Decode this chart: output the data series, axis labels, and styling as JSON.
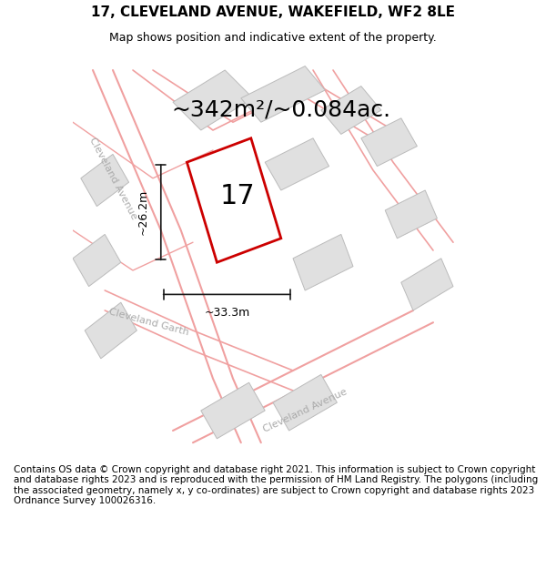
{
  "title_line1": "17, CLEVELAND AVENUE, WAKEFIELD, WF2 8LE",
  "title_line2": "Map shows position and indicative extent of the property.",
  "area_text": "~342m²/~0.084ac.",
  "number_label": "17",
  "dim_width": "~33.3m",
  "dim_height": "~26.2m",
  "footer_text": "Contains OS data © Crown copyright and database right 2021. This information is subject to Crown copyright and database rights 2023 and is reproduced with the permission of HM Land Registry. The polygons (including the associated geometry, namely x, y co-ordinates) are subject to Crown copyright and database rights 2023 Ordnance Survey 100026316.",
  "bg_color": "#ffffff",
  "map_bg": "#f5f5f5",
  "building_color": "#e0e0e0",
  "road_line_color": "#f0a0a0",
  "road_fill_color": "#f8f0f0",
  "highlight_color": "#cc0000",
  "dim_line_color": "#1a1a1a",
  "street_text_color": "#aaaaaa",
  "title_fontsize": 11,
  "subtitle_fontsize": 9,
  "area_fontsize": 18,
  "number_fontsize": 22,
  "footer_fontsize": 7.5
}
